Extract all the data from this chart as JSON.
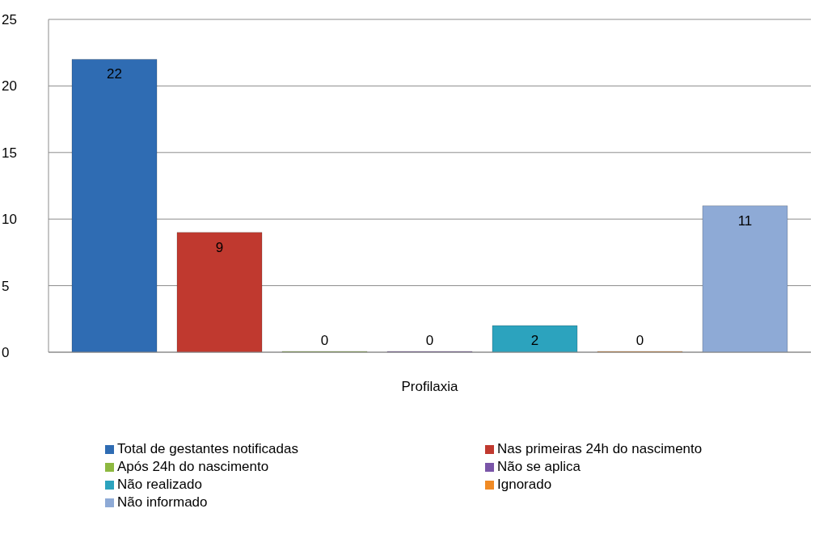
{
  "chart_data": {
    "type": "bar",
    "categories": [
      "Profilaxia"
    ],
    "series": [
      {
        "name": "Total de gestantes notificadas",
        "color": "#2f6cb3",
        "values": [
          22
        ]
      },
      {
        "name": "Nas primeiras 24h do nascimento",
        "color": "#c0392f",
        "values": [
          9
        ]
      },
      {
        "name": "Após 24h do nascimento",
        "color": "#8db840",
        "values": [
          0
        ]
      },
      {
        "name": "Não se aplica",
        "color": "#7a55a8",
        "values": [
          0
        ]
      },
      {
        "name": "Não realizado",
        "color": "#2ca3be",
        "values": [
          2
        ]
      },
      {
        "name": "Ignorado",
        "color": "#f08a24",
        "values": [
          0
        ]
      },
      {
        "name": "Não informado",
        "color": "#8eaad6",
        "values": [
          11
        ]
      }
    ],
    "ylim": [
      0,
      25
    ],
    "yticks": [
      0,
      5,
      10,
      15,
      20,
      25
    ],
    "grid": "y",
    "legend": "bottom",
    "data_labels": true
  }
}
